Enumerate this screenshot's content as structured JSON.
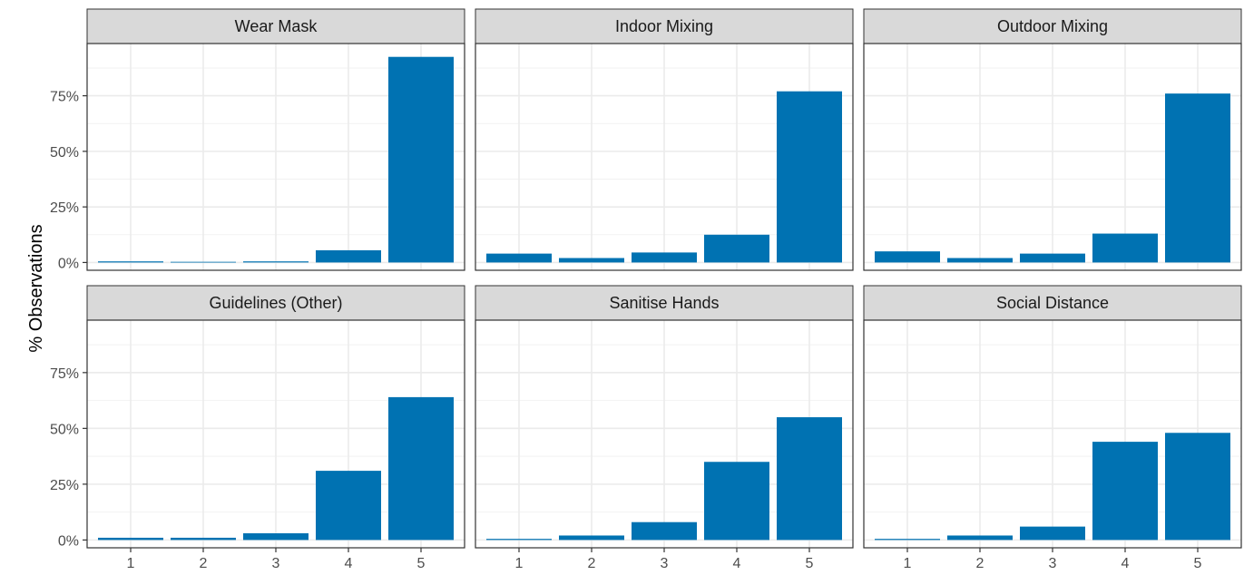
{
  "chart_data": {
    "type": "bar",
    "facet_layout": "3 columns x 2 rows",
    "ylabel": "% Observations",
    "xlabel": "",
    "categories": [
      "1",
      "2",
      "3",
      "4",
      "5"
    ],
    "ylim": [
      0,
      100
    ],
    "y_ticks": [
      "0%",
      "25%",
      "50%",
      "75%"
    ],
    "y_tick_values": [
      0,
      25,
      50,
      75
    ],
    "grid": true,
    "bar_color": "#0072B2",
    "panel_strip_color": "#d9d9d9",
    "panels": [
      {
        "title": "Wear Mask",
        "values": [
          0.5,
          0.3,
          0.5,
          5.5,
          92.5
        ]
      },
      {
        "title": "Indoor Mixing",
        "values": [
          4,
          2,
          4.5,
          12.5,
          77
        ]
      },
      {
        "title": "Outdoor Mixing",
        "values": [
          5,
          2,
          4,
          13,
          76
        ]
      },
      {
        "title": "Guidelines (Other)",
        "values": [
          1,
          1,
          3,
          31,
          64
        ]
      },
      {
        "title": "Sanitise Hands",
        "values": [
          0.5,
          2,
          8,
          35,
          55
        ]
      },
      {
        "title": "Social Distance",
        "values": [
          0.5,
          2,
          6,
          44,
          48
        ]
      }
    ]
  }
}
